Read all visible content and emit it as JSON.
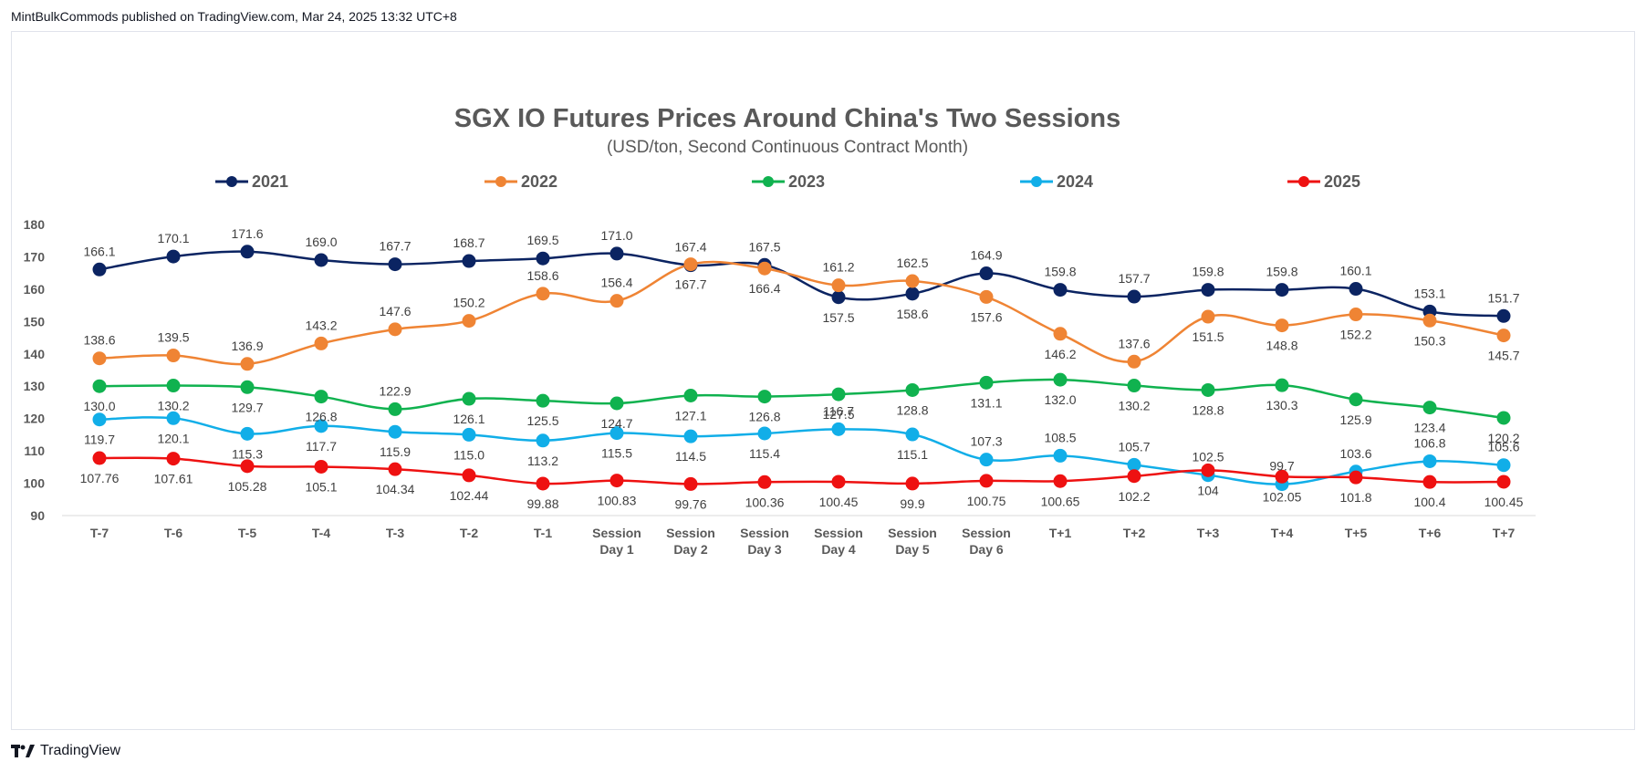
{
  "header": {
    "text": "MintBulkCommods published on TradingView.com, Mar 24, 2025 13:32 UTC+8"
  },
  "footer": {
    "brand": "TradingView"
  },
  "chart_data": {
    "type": "line",
    "title": "SGX IO Futures Prices Around China's Two Sessions",
    "subtitle": "(USD/ton, Second Continuous Contract Month)",
    "xlabel": "",
    "ylabel": "",
    "ylim": [
      90,
      180
    ],
    "yticks": [
      90,
      100,
      110,
      120,
      130,
      140,
      150,
      160,
      170,
      180
    ],
    "grid": false,
    "legend": "top",
    "categories": [
      "T-7",
      "T-6",
      "T-5",
      "T-4",
      "T-3",
      "T-2",
      "T-1",
      "Session Day 1",
      "Session Day 2",
      "Session Day 3",
      "Session Day 4",
      "Session Day 5",
      "Session Day 6",
      "T+1",
      "T+2",
      "T+3",
      "T+4",
      "T+5",
      "T+6",
      "T+7"
    ],
    "series": [
      {
        "name": "2021",
        "color": "#0b2462",
        "values": [
          166.1,
          170.1,
          171.6,
          169.0,
          167.7,
          168.7,
          169.5,
          171.0,
          167.4,
          167.5,
          157.5,
          158.6,
          164.9,
          159.8,
          157.7,
          159.8,
          159.8,
          160.1,
          153.1,
          151.7
        ],
        "labels": [
          "166.1",
          "170.1",
          "171.6",
          "169.0",
          "167.7",
          "168.7",
          "169.5",
          "171.0",
          "167.4",
          "167.5",
          "157.5",
          "158.6",
          "164.9",
          "159.8",
          "157.7",
          "159.8",
          "159.8",
          "160.1",
          "153.1",
          "151.7"
        ]
      },
      {
        "name": "2022",
        "color": "#ef8434",
        "values": [
          138.6,
          139.5,
          136.9,
          143.2,
          147.6,
          150.2,
          158.6,
          156.4,
          167.7,
          166.4,
          161.2,
          162.5,
          157.6,
          146.2,
          137.6,
          151.5,
          148.8,
          152.2,
          150.3,
          145.7
        ],
        "labels": [
          "138.6",
          "139.5",
          "136.9",
          "143.2",
          "147.6",
          "150.2",
          "158.6",
          "156.4",
          "167.7",
          "166.4",
          "161.2",
          "162.5",
          "157.6",
          "146.2",
          "137.6",
          "151.5",
          "148.8",
          "152.2",
          "150.3",
          "145.7"
        ]
      },
      {
        "name": "2023",
        "color": "#10b24f",
        "values": [
          130.0,
          130.2,
          129.7,
          126.8,
          122.9,
          126.1,
          125.5,
          124.7,
          127.1,
          126.8,
          127.5,
          128.8,
          131.1,
          132.0,
          130.2,
          128.8,
          130.3,
          125.9,
          123.4,
          120.2
        ],
        "labels": [
          "130.0",
          "130.2",
          "129.7",
          "126.8",
          "122.9",
          "126.1",
          "125.5",
          "124.7",
          "127.1",
          "126.8",
          "127.5",
          "128.8",
          "131.1",
          "132.0",
          "130.2",
          "128.8",
          "130.3",
          "125.9",
          "123.4",
          "120.2"
        ]
      },
      {
        "name": "2024",
        "color": "#11aee8",
        "values": [
          119.7,
          120.1,
          115.3,
          117.7,
          115.9,
          115.0,
          113.2,
          115.5,
          114.5,
          115.4,
          116.7,
          115.1,
          107.3,
          108.5,
          105.7,
          102.5,
          99.7,
          103.6,
          106.8,
          105.6
        ],
        "labels": [
          "119.7",
          "120.1",
          "115.3",
          "117.7",
          "115.9",
          "115.0",
          "113.2",
          "115.5",
          "114.5",
          "115.4",
          "116.7",
          "115.1",
          "107.3",
          "108.5",
          "105.7",
          "102.5",
          "99.7",
          "103.6",
          "106.8",
          "105.6"
        ]
      },
      {
        "name": "2025",
        "color": "#ee1111",
        "values": [
          107.76,
          107.61,
          105.28,
          105.1,
          104.34,
          102.44,
          99.88,
          100.83,
          99.76,
          100.36,
          100.45,
          99.9,
          100.75,
          100.65,
          102.2,
          104,
          102.05,
          101.8,
          100.4,
          100.45
        ],
        "labels": [
          "107.76",
          "107.61",
          "105.28",
          "105.1",
          "104.34",
          "102.44",
          "99.88",
          "100.83",
          "99.76",
          "100.36",
          "100.45",
          "99.9",
          "100.75",
          "100.65",
          "102.2",
          "104",
          "102.05",
          "101.8",
          "100.4",
          "100.45"
        ]
      }
    ]
  }
}
